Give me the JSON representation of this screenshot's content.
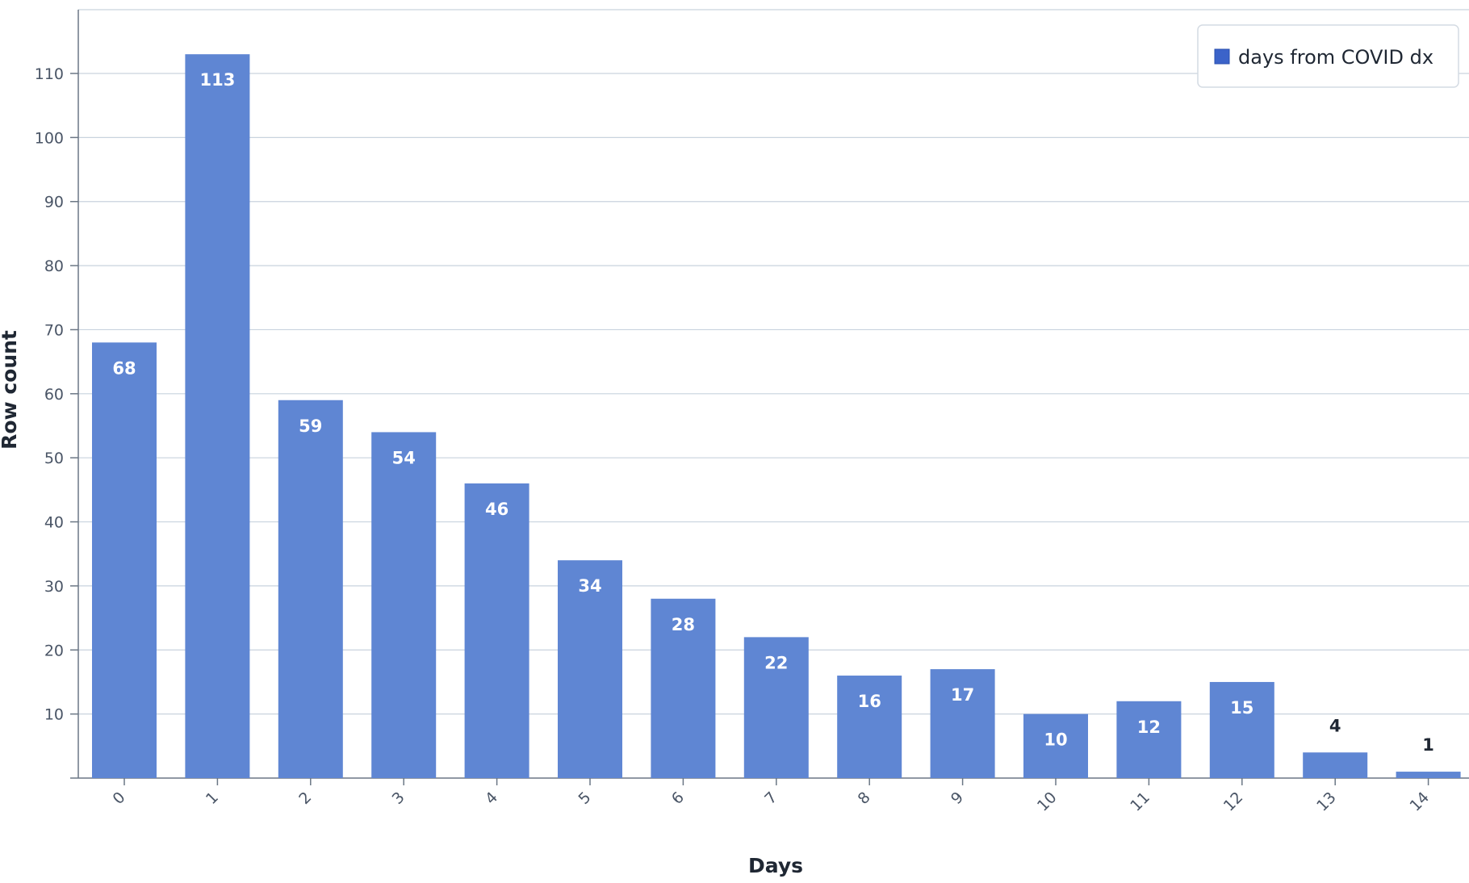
{
  "chart_data": {
    "type": "bar",
    "xlabel": "Days",
    "ylabel": "Row count",
    "categories": [
      "0",
      "1",
      "2",
      "3",
      "4",
      "5",
      "6",
      "7",
      "8",
      "9",
      "10",
      "11",
      "12",
      "13",
      "14"
    ],
    "series": [
      {
        "name": "days from COVID dx",
        "values": [
          68,
          113,
          59,
          54,
          46,
          34,
          28,
          22,
          16,
          17,
          10,
          12,
          15,
          4,
          1
        ],
        "color": "#5f86d3"
      }
    ],
    "ylim": [
      0,
      120
    ],
    "yticks": [
      10,
      20,
      30,
      40,
      50,
      60,
      70,
      80,
      90,
      100,
      110
    ],
    "grid": true,
    "legend": "top-right",
    "colors": {
      "bar": "#5f86d3",
      "legend_swatch": "#3b63c9",
      "grid": "#c9d3de",
      "axis": "#6b7785",
      "label_inside": "#ffffff",
      "label_outside": "#1f2733"
    }
  }
}
